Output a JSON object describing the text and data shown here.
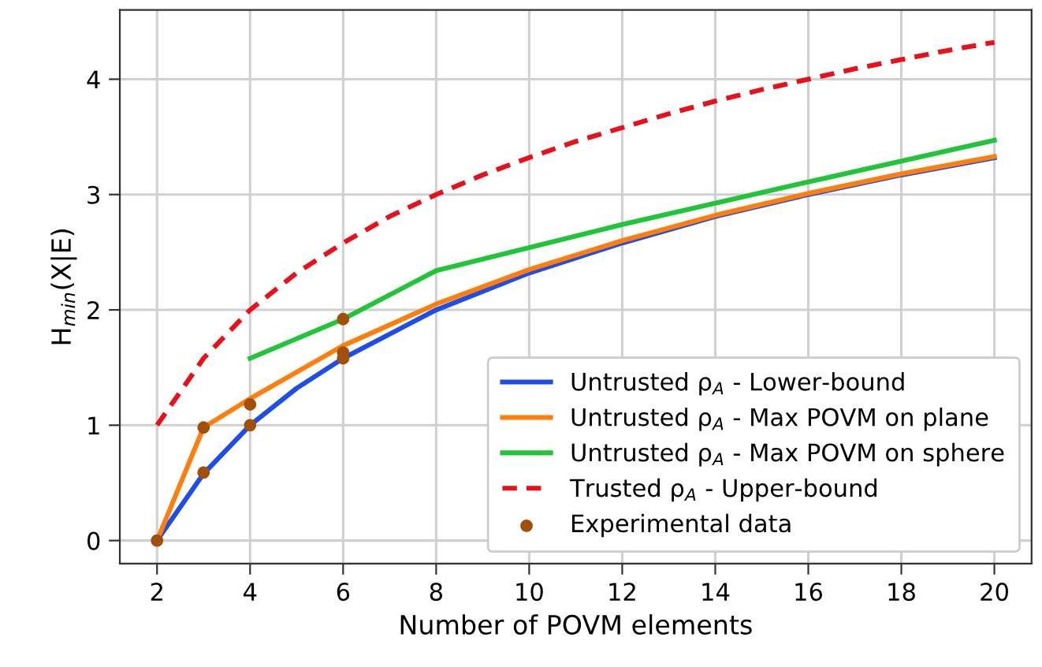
{
  "chart_data": {
    "type": "line",
    "xlabel": "Number of POVM elements",
    "ylabel": "H$_{min}$(X|E)",
    "series": [
      {
        "name": "Untrusted ρ$_{A}$ - Lower-bound",
        "color": "#1f4de8",
        "x": [
          2,
          3,
          4,
          5,
          6,
          8,
          10,
          12,
          14,
          16,
          18,
          20
        ],
        "values": [
          0,
          0.58,
          1.0,
          1.32,
          1.58,
          2.0,
          2.32,
          2.58,
          2.81,
          3.0,
          3.17,
          3.32
        ]
      },
      {
        "name": "Untrusted ρ$_{A}$ - Max POVM on plane",
        "color": "#ff7f0e",
        "x": [
          2,
          3,
          4,
          6,
          8,
          10,
          12,
          14,
          16,
          18,
          20
        ],
        "values": [
          0,
          0.98,
          1.23,
          1.69,
          2.05,
          2.35,
          2.6,
          2.82,
          3.01,
          3.18,
          3.33
        ]
      },
      {
        "name": "Untrusted ρ$_{A}$ - Max POVM on sphere",
        "color": "#22c53a",
        "x": [
          4,
          6,
          8,
          12,
          16,
          20
        ],
        "values": [
          1.58,
          1.92,
          2.34,
          2.74,
          3.11,
          3.47
        ]
      },
      {
        "name": "Trusted ρ$_{A}$ - Upper-bound",
        "color": "#e8101a",
        "line_style": "dashed",
        "x": [
          2,
          3,
          4,
          5,
          6,
          7,
          8,
          9,
          10,
          11,
          12,
          13,
          14,
          15,
          16,
          17,
          18,
          19,
          20
        ],
        "values": [
          1.0,
          1.58,
          2.0,
          2.32,
          2.58,
          2.81,
          3.0,
          3.17,
          3.32,
          3.46,
          3.58,
          3.7,
          3.81,
          3.91,
          4.0,
          4.09,
          4.17,
          4.25,
          4.32
        ]
      },
      {
        "name": "Experimental data",
        "type": "scatter",
        "color": "#a0500a",
        "marker": "circle",
        "x": [
          2,
          3,
          3,
          4,
          4,
          6,
          6,
          6
        ],
        "values": [
          0,
          0.98,
          0.59,
          1.0,
          1.18,
          1.92,
          1.63,
          1.58
        ]
      }
    ],
    "xlim": [
      1.2,
      20.8
    ],
    "ylim": [
      -0.2,
      4.6
    ],
    "xticks": [
      2,
      4,
      6,
      8,
      10,
      12,
      14,
      16,
      18,
      20
    ],
    "yticks": [
      0,
      1,
      2,
      3,
      4
    ],
    "grid": true,
    "legend": "bottom right"
  }
}
